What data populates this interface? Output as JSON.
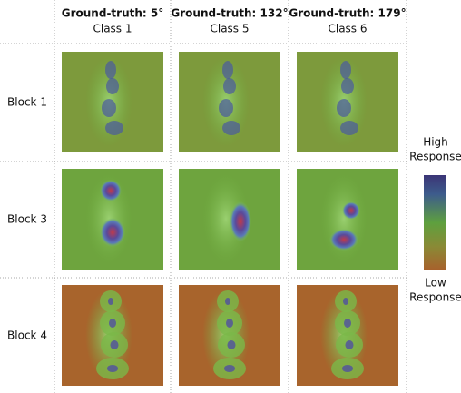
{
  "columns": [
    {
      "title": "Ground-truth: 5°",
      "class": "Class 1"
    },
    {
      "title": "Ground-truth: 132°",
      "class": "Class 5"
    },
    {
      "title": "Ground-truth: 179°",
      "class": "Class 6"
    }
  ],
  "rows": [
    "Block 1",
    "Block 3",
    "Block 4"
  ],
  "colorbar": {
    "high": [
      "High",
      "Response"
    ],
    "low": [
      "Low",
      "Response"
    ]
  }
}
